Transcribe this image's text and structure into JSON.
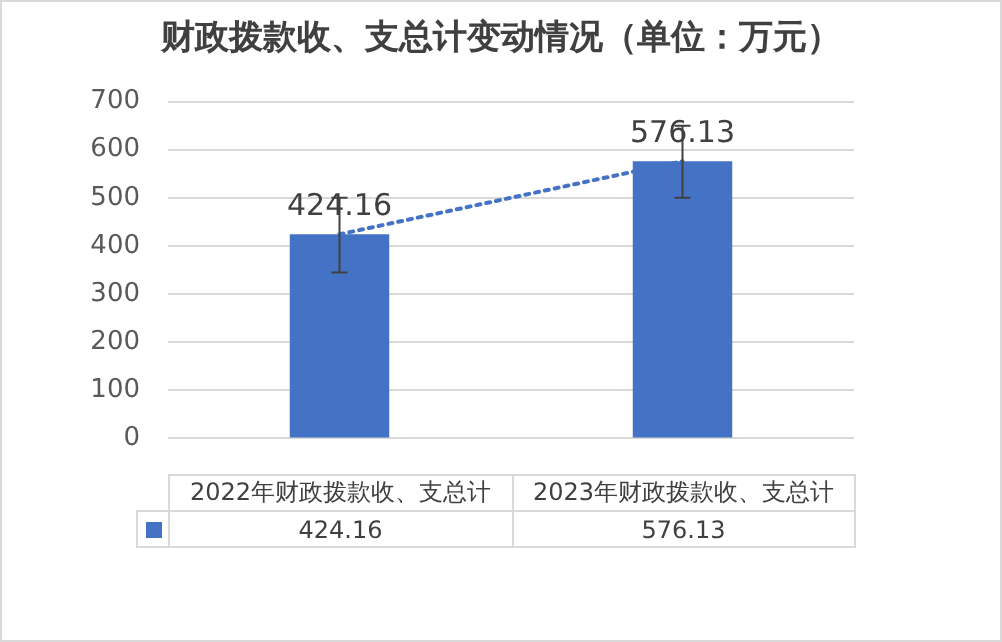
{
  "chart_data": {
    "type": "bar",
    "title": "财政拨款收、支总计变动情况（单位：万元）",
    "categories": [
      "2022年财政拨款收、支总计",
      "2023年财政拨款收、支总计"
    ],
    "series": [
      {
        "color": "#4472c4",
        "values": [
          424.16,
          576.13
        ],
        "errors": [
          [
            345,
            500
          ],
          [
            500,
            650
          ]
        ]
      },
      {
        "type": "line",
        "x": [
          "2022年财政拨款收、支总计",
          "2023年财政拨款收、支总计"
        ],
        "color": "#4472c4",
        "values": [
          424.16,
          576.13
        ],
        "line_style": "dotted",
        "marker": "none"
      }
    ],
    "ylim": [
      0,
      700
    ],
    "yticks": [
      0,
      100,
      200,
      300,
      400,
      500,
      600,
      700
    ],
    "grid": "y",
    "data_labels": true,
    "legend": false
  }
}
